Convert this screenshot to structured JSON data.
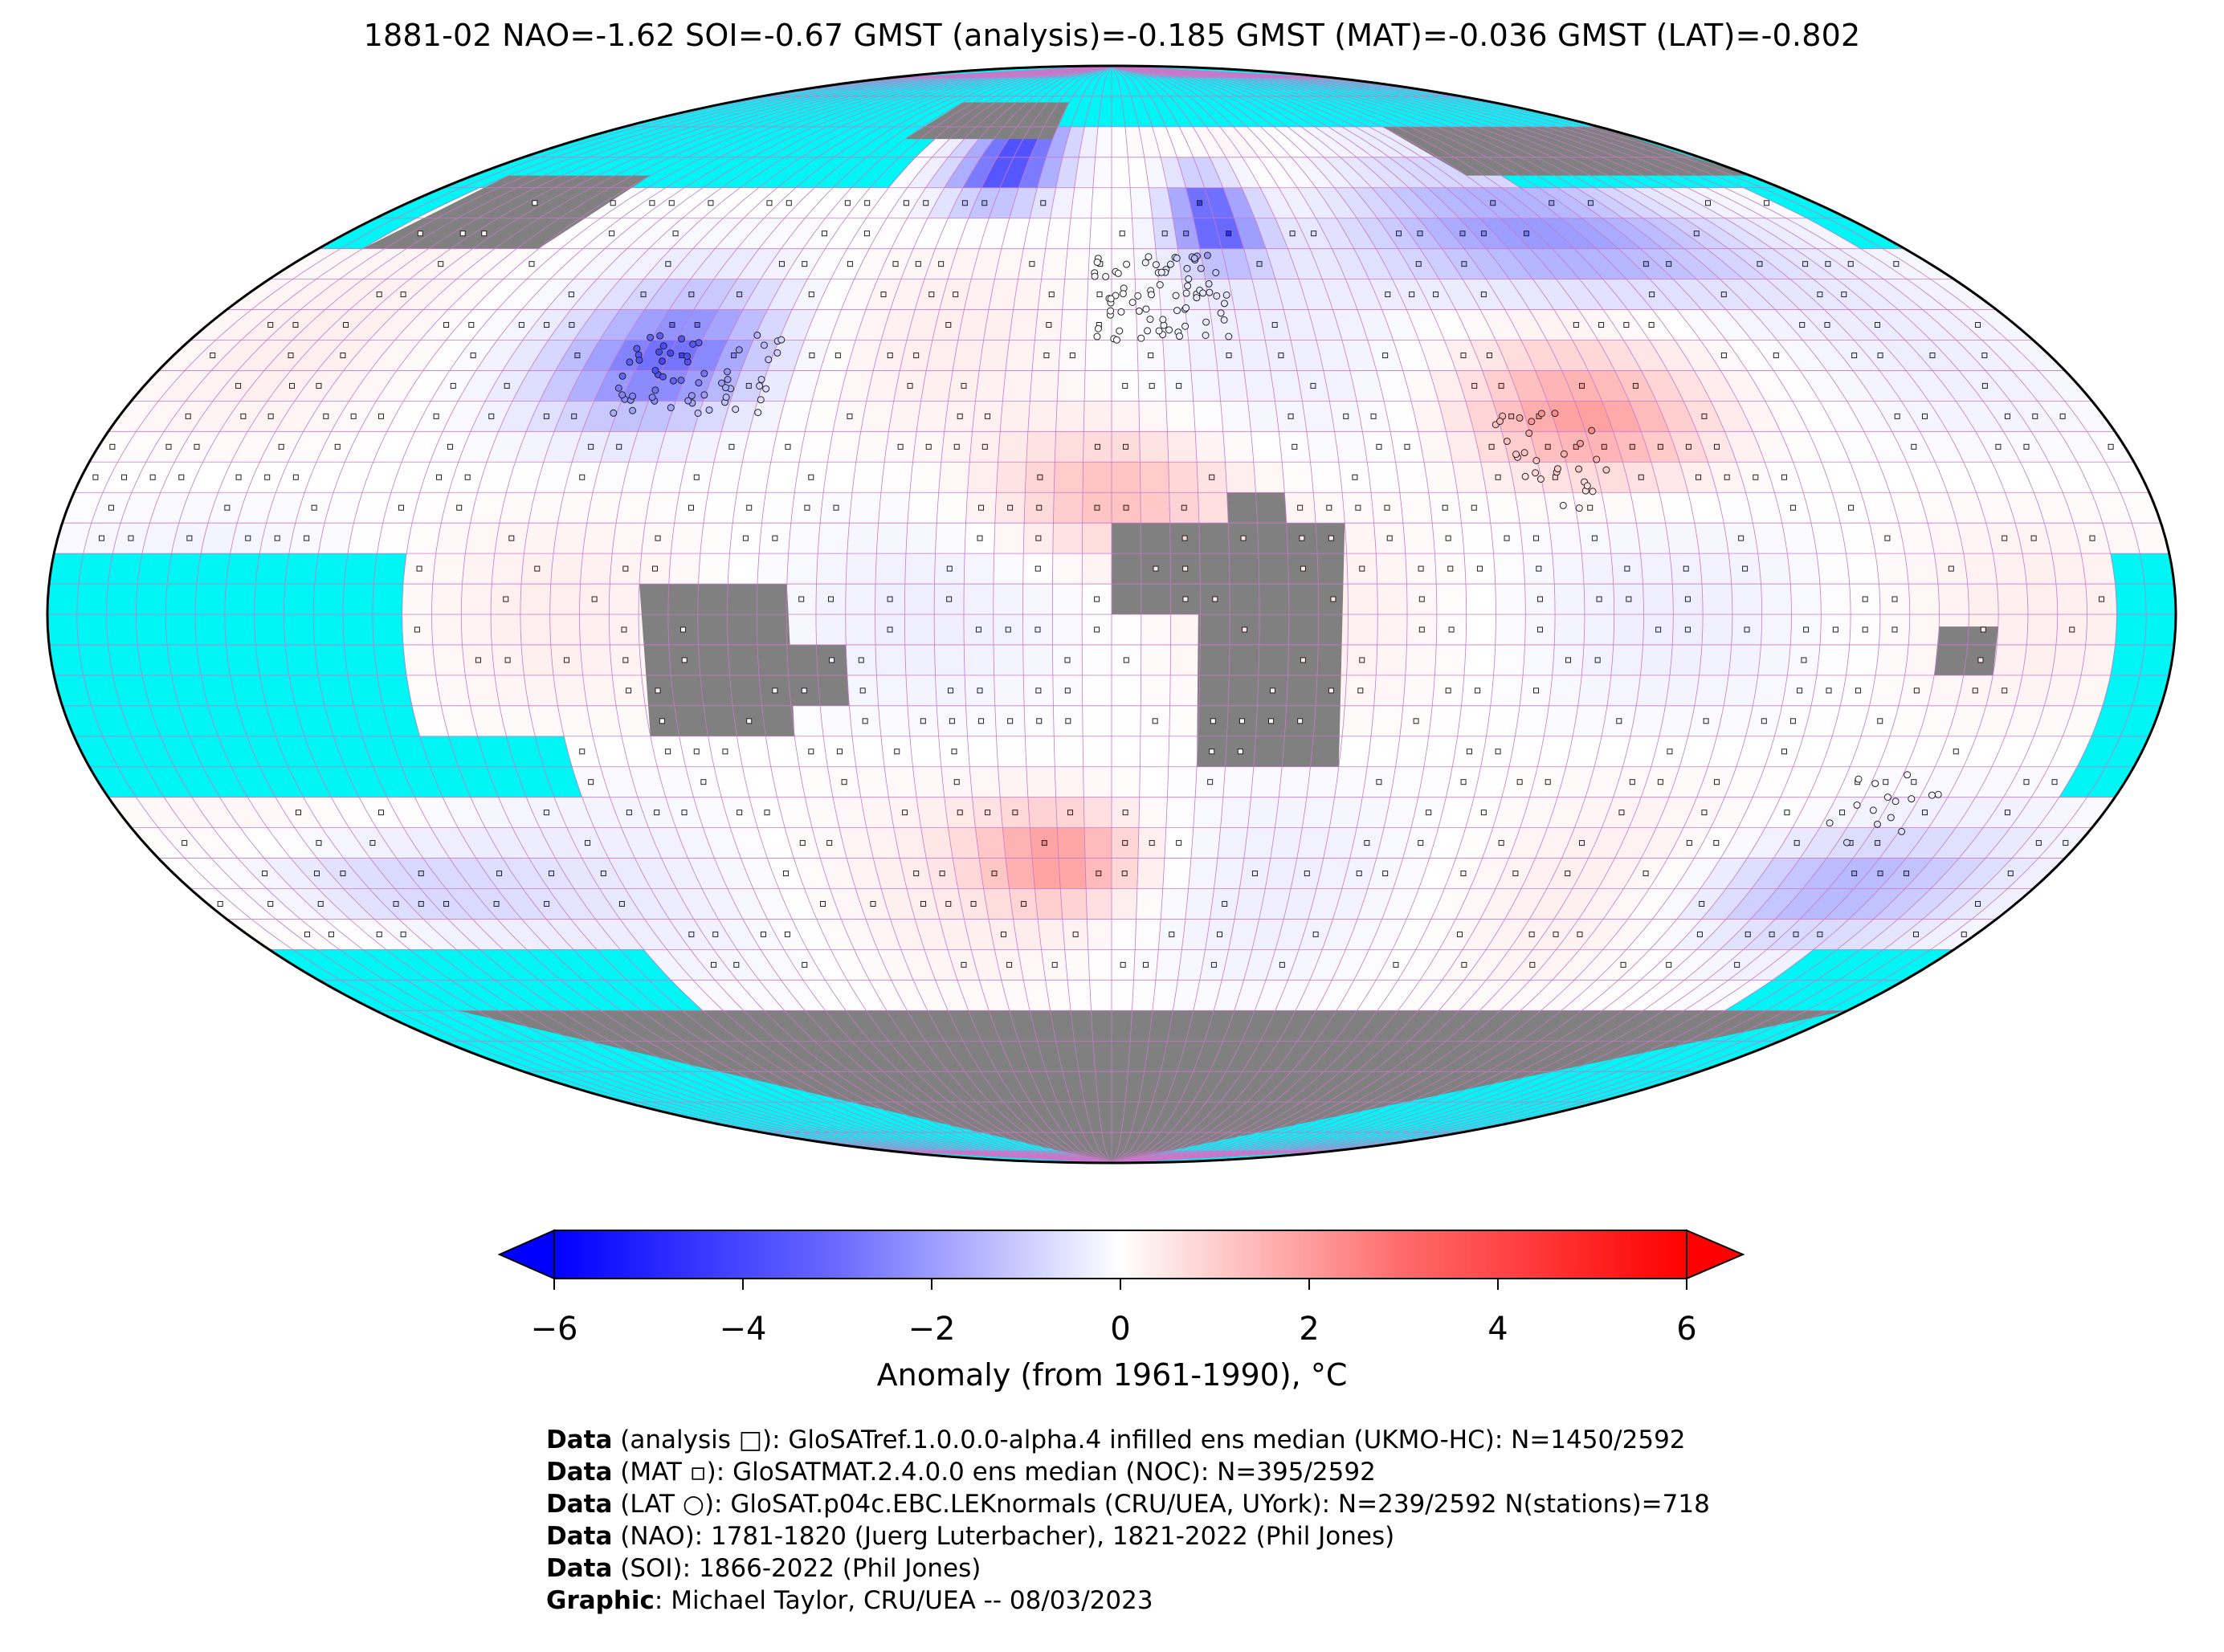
{
  "title": "1881-02 NAO=-1.62 SOI=-0.67 GMST (analysis)=-0.185 GMST (MAT)=-0.036 GMST (LAT)=-0.802",
  "colors": {
    "ocean_masked": "#00f5f5",
    "land_missing": "#808080",
    "grid_line": "#c878c8",
    "cold": "#0000ff",
    "neutral": "#ffffff",
    "warm": "#ff0000"
  },
  "colorbar": {
    "label": "Anomaly (from 1961-1990), °C",
    "range": [
      -6,
      6
    ],
    "ticks": [
      "−6",
      "−4",
      "−2",
      "0",
      "2",
      "4",
      "6"
    ],
    "extend": "both"
  },
  "credits": [
    {
      "bold": "Data",
      "text": " (analysis □): GloSATref.1.0.0.0-alpha.4 infilled ens median (UKMO-HC): N=1450/2592"
    },
    {
      "bold": "Data",
      "text": " (MAT ▫): GloSATMAT.2.4.0.0 ens median (NOC): N=395/2592"
    },
    {
      "bold": "Data",
      "text": " (LAT ○): GloSAT.p04c.EBC.LEKnormals (CRU/UEA, UYork): N=239/2592 N(stations)=718"
    },
    {
      "bold": "Data",
      "text": " (NAO): 1781-1820 (Juerg Luterbacher), 1821-2022 (Phil Jones)"
    },
    {
      "bold": "Data",
      "text": " (SOI): 1866-2022 (Phil Jones)"
    },
    {
      "bold": "Graphic",
      "text": ": Michael Taylor, CRU/UEA -- 08/03/2023"
    }
  ]
}
